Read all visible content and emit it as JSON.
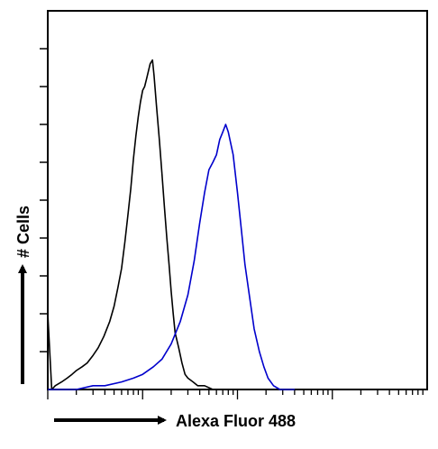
{
  "chart_data": {
    "type": "line",
    "title": "",
    "xlabel": "Alexa Fluor 488",
    "ylabel": "# Cells",
    "x_scale": "log",
    "xlim": [
      1,
      10000
    ],
    "ylim": [
      0,
      100
    ],
    "grid": false,
    "legend": "none",
    "series": [
      {
        "color": "#000000",
        "x": [
          1.0,
          1.1,
          1.2,
          1.4,
          1.6,
          1.8,
          2.0,
          2.3,
          2.6,
          3.0,
          3.4,
          3.9,
          4.5,
          5.0,
          5.5,
          6.0,
          6.5,
          7.0,
          7.5,
          8.0,
          8.5,
          9.0,
          9.5,
          10.0,
          10.5,
          11.0,
          11.5,
          12.0,
          12.7,
          13.2,
          14.0,
          15.0,
          16.0,
          17.0,
          18.0,
          19.0,
          20.0,
          21.0,
          22.0,
          24.0,
          26.0,
          28.0,
          30.0,
          34.0,
          38.0,
          45.0,
          55.0,
          70.0,
          85.0,
          100.0,
          120.0
        ],
        "values": [
          20,
          0,
          1,
          2,
          3,
          4,
          5,
          6,
          7,
          9,
          11,
          14,
          18,
          22,
          27,
          32,
          39,
          46,
          53,
          61,
          67,
          72,
          76,
          79,
          80,
          82,
          84,
          86,
          87,
          83,
          75,
          66,
          57,
          48,
          40,
          33,
          26,
          20,
          15,
          11,
          7,
          4,
          3,
          2,
          1,
          1,
          0,
          0,
          0,
          0,
          0
        ]
      },
      {
        "color": "#0000cc",
        "x": [
          1.0,
          1.5,
          2.0,
          3.0,
          4.0,
          6.0,
          8.0,
          10.0,
          13.0,
          16.0,
          20.0,
          25.0,
          30.0,
          35.0,
          40.0,
          45.0,
          50.0,
          55.0,
          60.0,
          65.0,
          70.0,
          75.0,
          80.0,
          90.0,
          100.0,
          110.0,
          120.0,
          135.0,
          150.0,
          170.0,
          190.0,
          210.0,
          240.0,
          280.0,
          320.0,
          400.0
        ],
        "values": [
          0,
          0,
          0,
          1,
          1,
          2,
          3,
          4,
          6,
          8,
          12,
          18,
          25,
          34,
          44,
          52,
          58,
          60,
          62,
          66,
          68,
          70,
          68,
          62,
          52,
          42,
          33,
          24,
          16,
          10,
          6,
          3,
          1,
          0,
          0,
          0
        ]
      }
    ]
  }
}
